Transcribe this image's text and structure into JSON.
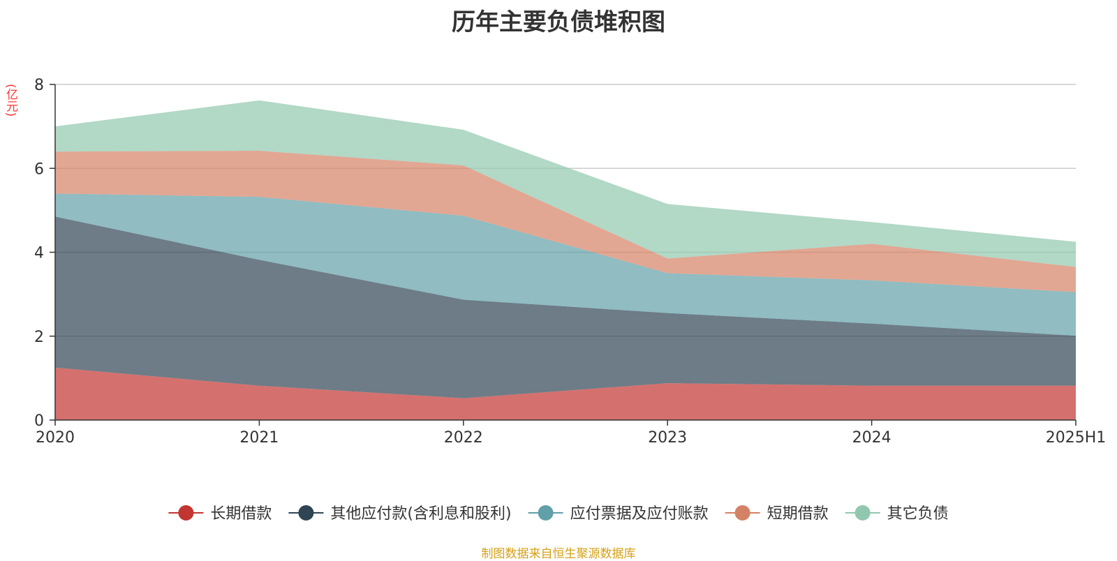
{
  "title": "历年主要负债堆积图",
  "unit_label": "(亿元)",
  "source_note": "制图数据来自恒生聚源数据库",
  "chart_data": {
    "type": "area",
    "stacked": true,
    "categories": [
      "2020",
      "2021",
      "2022",
      "2023",
      "2024",
      "2025H1"
    ],
    "series": [
      {
        "name": "长期借款",
        "color": "#c23531",
        "values": [
          1.25,
          0.82,
          0.52,
          0.88,
          0.82,
          0.82
        ]
      },
      {
        "name": "其他应付款(含利息和股利)",
        "color": "#2f4554",
        "values": [
          3.6,
          3.0,
          2.35,
          1.67,
          1.48,
          1.19
        ]
      },
      {
        "name": "应付票据及应付账款",
        "color": "#61a0a8",
        "values": [
          0.55,
          1.5,
          2.0,
          0.95,
          1.03,
          1.04
        ]
      },
      {
        "name": "短期借款",
        "color": "#d48265",
        "values": [
          1.0,
          1.1,
          1.2,
          0.35,
          0.87,
          0.6
        ]
      },
      {
        "name": "其它负债",
        "color": "#91c7ae",
        "values": [
          0.6,
          1.2,
          0.85,
          1.3,
          0.52,
          0.6
        ]
      }
    ],
    "ylim": [
      0,
      8
    ],
    "yticks": [
      0,
      2,
      4,
      6,
      8
    ],
    "grid": true,
    "legend_position": "bottom"
  }
}
